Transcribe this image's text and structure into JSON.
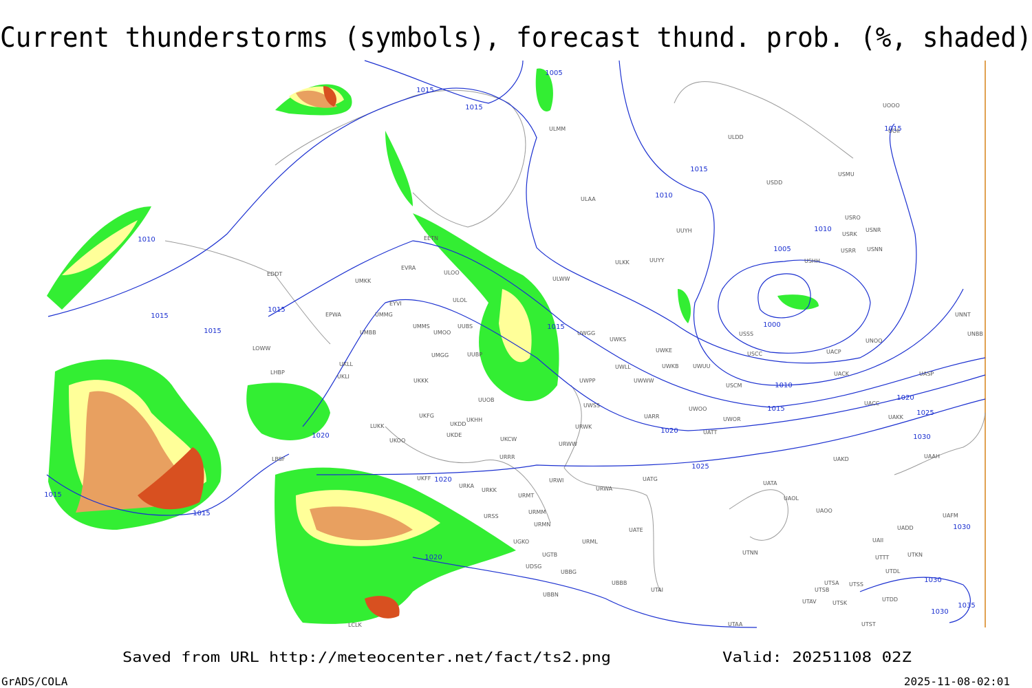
{
  "title": "Current thunderstorms (symbols), forecast thund. prob. (%, shaded)",
  "footer": {
    "saved_from": "Saved from URL http://meteocenter.net/fact/ts2.png",
    "valid": "Valid: 20251108 02Z",
    "software": "GrADS/COLA",
    "timestamp": "2025-11-08-02:01"
  },
  "isobar_labels": [
    1005,
    1015,
    1015,
    1015,
    1015,
    1010,
    1010,
    1010,
    1005,
    1015,
    1015,
    1015,
    1015,
    1000,
    1010,
    1015,
    1020,
    1025,
    1020,
    1020,
    1030,
    1025,
    1020,
    1015,
    1015,
    1020,
    1030,
    1030,
    1030,
    1035
  ],
  "stations": [
    "ULMM",
    "ULDD",
    "USDD",
    "USMU",
    "UOOO",
    "UOII",
    "ULAA",
    "USRO",
    "USRK",
    "USNR",
    "UUYH",
    "USRR",
    "USNN",
    "USHH",
    "ULKK",
    "UUYY",
    "ULWW",
    "EETN",
    "EVRA",
    "ULOO",
    "EDDT",
    "UMKK",
    "ULOL",
    "EYVI",
    "EPWA",
    "UMMG",
    "UMMS",
    "UMOO",
    "UUBS",
    "UWGG",
    "UWKS",
    "USSS",
    "UNOO",
    "UNNT",
    "UNBB",
    "UMBB",
    "LOWW",
    "UWKE",
    "UUBP",
    "USCC",
    "UACP",
    "UWKB",
    "UWUU",
    "UWLL",
    "UACK",
    "UASP",
    "LHBP",
    "UKLL",
    "UMGG",
    "UKLI",
    "UWPP",
    "UWWW",
    "USCM",
    "UKKK",
    "UUOB",
    "UWSS",
    "UACC",
    "UAKK",
    "UWOO",
    "UWOR",
    "UARR",
    "UATT",
    "URWK",
    "LUKK",
    "UKFG",
    "UKDD",
    "UKHH",
    "UKDE",
    "UKOO",
    "UKCW",
    "URWW",
    "LBSF",
    "URRR",
    "UAKD",
    "UAAH",
    "UKFF",
    "URKA",
    "URKK",
    "URWI",
    "UATG",
    "URWA",
    "UATA",
    "UAOL",
    "UAOO",
    "URMT",
    "URSS",
    "URMM",
    "URMN",
    "UATE",
    "UAFM",
    "UADD",
    "UGKO",
    "URML",
    "UAII",
    "UTNN",
    "UTKN",
    "UTTT",
    "UGTB",
    "UDSG",
    "UTDL",
    "UBBG",
    "UBBB",
    "UTSA",
    "UTSS",
    "UTSB",
    "UTAI",
    "UBBN",
    "UTAV",
    "UTSK",
    "UTDD",
    "UTAA",
    "UTST",
    "LCLK"
  ]
}
